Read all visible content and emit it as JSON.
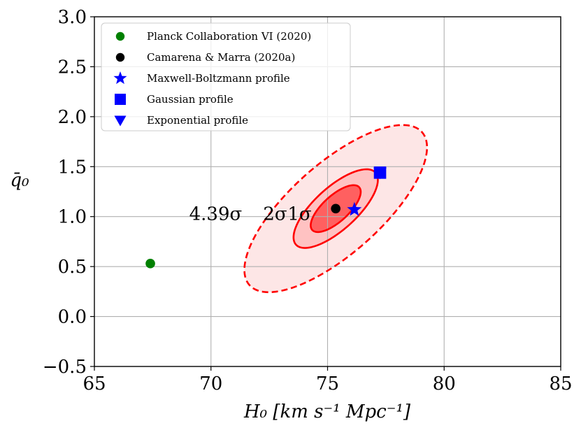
{
  "chart_data": {
    "type": "scatter",
    "xlabel": "H₀ [km s⁻¹ Mpc⁻¹]",
    "ylabel": "q̄₀",
    "xlim": [
      65,
      85
    ],
    "ylim": [
      -0.5,
      3.0
    ],
    "xticks": [
      "65",
      "70",
      "75",
      "80",
      "85"
    ],
    "yticks": [
      "−0.5",
      "0.0",
      "0.5",
      "1.0",
      "1.5",
      "2.0",
      "2.5",
      "3.0"
    ],
    "xtick_values": [
      65,
      70,
      75,
      80,
      85
    ],
    "ytick_values": [
      -0.5,
      0.0,
      0.5,
      1.0,
      1.5,
      2.0,
      2.5,
      3.0
    ],
    "grid": true,
    "legend_position": "top-left",
    "series": [
      {
        "name": "Planck Collaboration VI (2020)",
        "marker": "circle",
        "color": "#008000",
        "x": [
          67.4
        ],
        "y": [
          0.53
        ]
      },
      {
        "name": "Camarena & Marra (2020a)",
        "marker": "circle",
        "color": "#000000",
        "x": [
          75.35
        ],
        "y": [
          1.08
        ]
      },
      {
        "name": "Maxwell-Boltzmann profile",
        "marker": "star",
        "color": "#0000ff",
        "x": [
          76.15
        ],
        "y": [
          1.07
        ]
      },
      {
        "name": "Gaussian profile",
        "marker": "square",
        "color": "#0000ff",
        "x": [
          77.25
        ],
        "y": [
          1.44
        ]
      },
      {
        "name": "Exponential profile",
        "marker": "triangle-down",
        "color": "#0000ff",
        "x": [
          77.25
        ],
        "y": [
          1.44
        ]
      }
    ],
    "contours": [
      {
        "label": "4.39σ",
        "style": "dashed",
        "fill": "#fde6e6",
        "stroke": "#ff0000",
        "center": [
          75.35,
          1.08
        ],
        "cov": [
          [
            15.34,
            2.4
          ],
          [
            2.4,
            0.7
          ]
        ]
      },
      {
        "label": "2σ",
        "style": "solid",
        "fill": "#ffc2c2",
        "stroke": "#ff0000",
        "center": [
          75.35,
          1.08
        ],
        "cov": [
          [
            3.27,
            0.52
          ],
          [
            0.52,
            0.155
          ]
        ]
      },
      {
        "label": "1σ",
        "style": "solid",
        "fill": "#ff6060",
        "stroke": "#ff0000",
        "center": [
          75.35,
          1.08
        ],
        "cov": [
          [
            1.15,
            0.18
          ],
          [
            0.18,
            0.055
          ]
        ]
      }
    ],
    "contour_label_anchors": [
      {
        "label": "4.39σ",
        "x": 70.2,
        "y": 1.03
      },
      {
        "label": "2σ",
        "x": 72.75,
        "y": 1.03
      },
      {
        "label": "1σ",
        "x": 73.8,
        "y": 1.03
      }
    ]
  }
}
